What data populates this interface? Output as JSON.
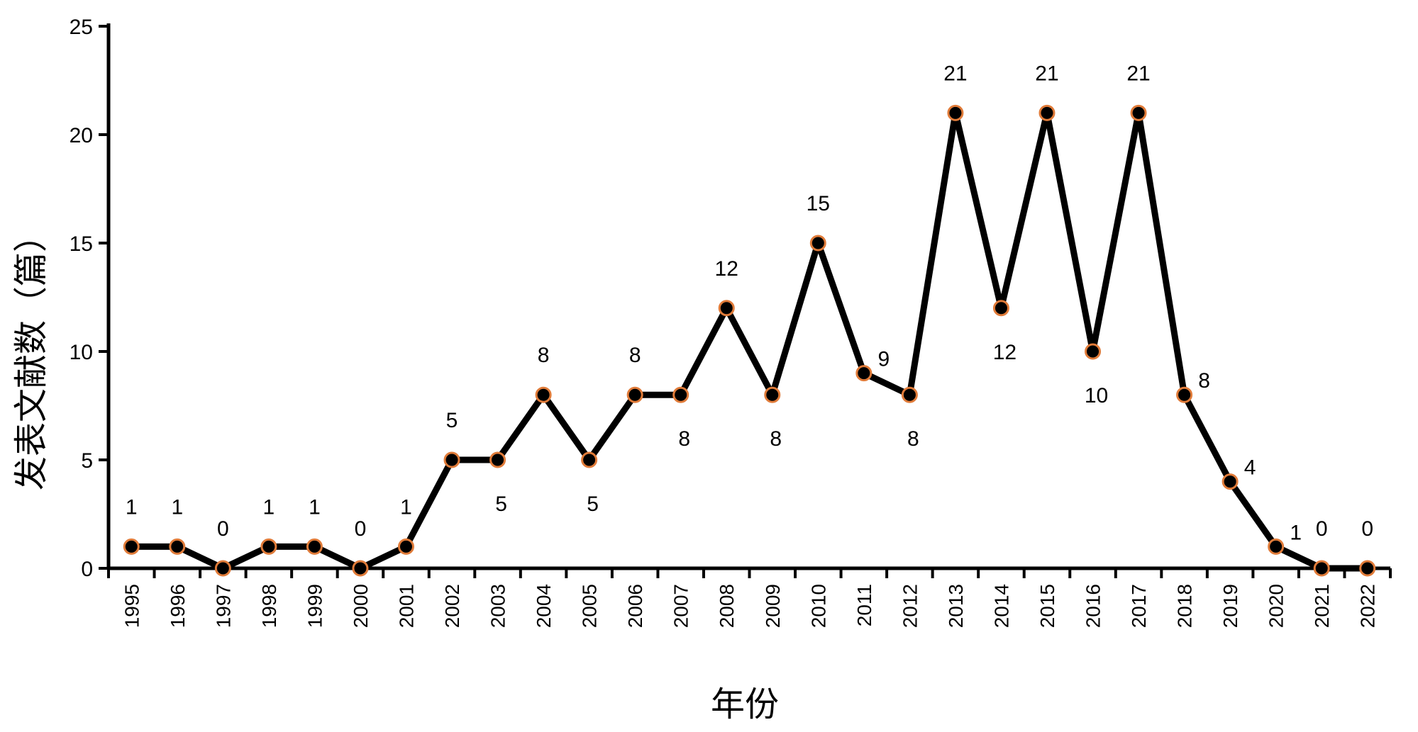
{
  "chart_data": {
    "type": "line",
    "title": "",
    "xlabel": "年份",
    "ylabel": "发表文献数（篇）",
    "ylim": [
      0,
      25
    ],
    "yticks": [
      0,
      5,
      10,
      15,
      20,
      25
    ],
    "grid": false,
    "legend": "none",
    "categories": [
      "1995",
      "1996",
      "1997",
      "1998",
      "1999",
      "2000",
      "2001",
      "2002",
      "2003",
      "2004",
      "2005",
      "2006",
      "2007",
      "2008",
      "2009",
      "2010",
      "2011",
      "2012",
      "2013",
      "2014",
      "2015",
      "2016",
      "2017",
      "2018",
      "2019",
      "2020",
      "2021",
      "2022"
    ],
    "series": [
      {
        "values": [
          1,
          1,
          0,
          1,
          1,
          0,
          1,
          5,
          5,
          8,
          5,
          8,
          8,
          12,
          8,
          15,
          9,
          8,
          21,
          12,
          21,
          10,
          21,
          8,
          4,
          1,
          0,
          0
        ],
        "line_color": "#000000",
        "marker_fill": "#000000",
        "marker_edge": "#e07b39"
      }
    ]
  }
}
